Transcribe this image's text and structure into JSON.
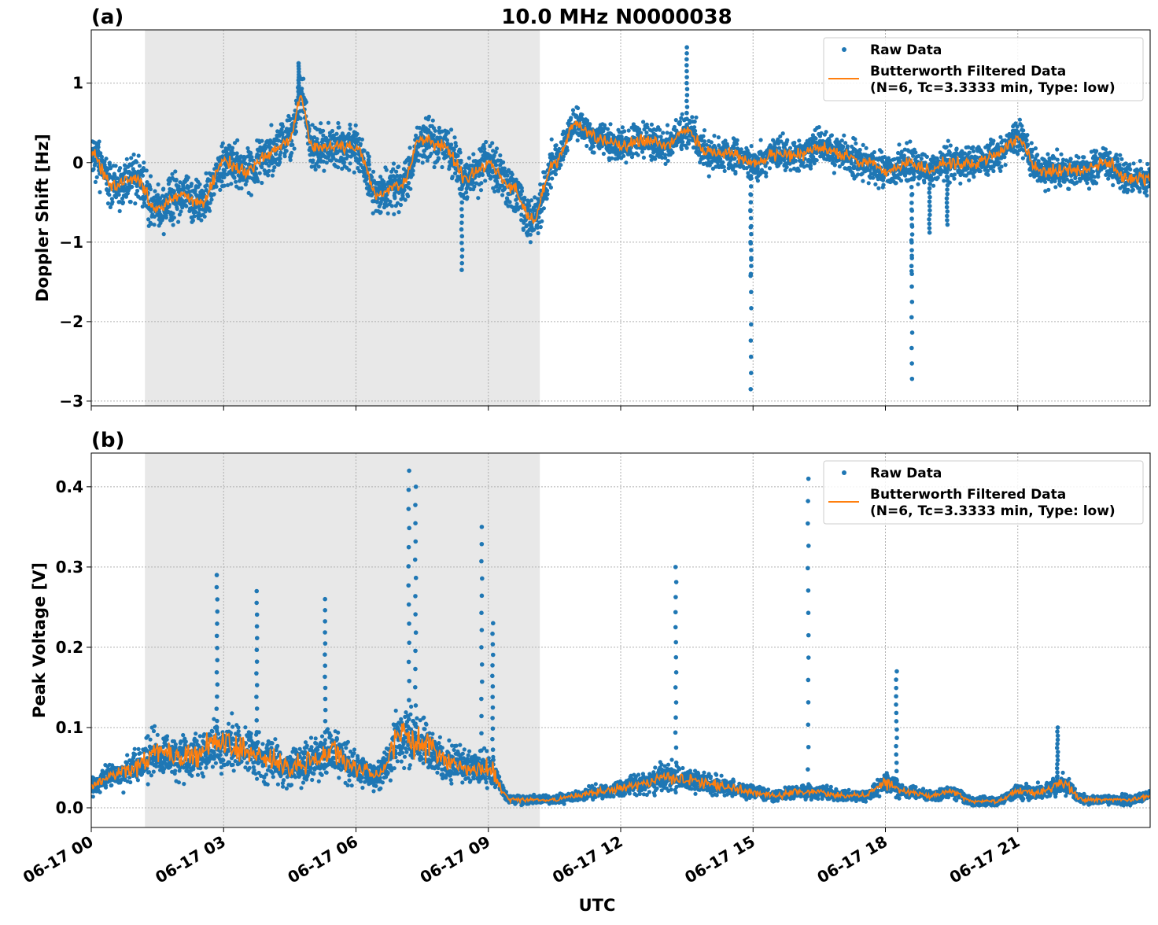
{
  "title": "10.0 MHz N0000038",
  "colors": {
    "raw": "#1f77b4",
    "filtered": "#ff7f0e",
    "shade": "#e8e8e8",
    "grid": "#b0b0b0"
  },
  "chart_data": [
    {
      "type": "scatter",
      "panel_label": "(a)",
      "ylabel": "Doppler Shift [Hz]",
      "xlabel": "",
      "xlim_hours": [
        0,
        24
      ],
      "ylim": [
        -3.06,
        1.67
      ],
      "yticks": [
        1,
        0,
        -1,
        -2,
        -3
      ],
      "ytick_labels": [
        "1",
        "0",
        "−1",
        "−2",
        "−3"
      ],
      "grid": true,
      "legend": "top-right",
      "legend_entries": [
        "Raw Data",
        "Butterworth Filtered Data",
        "(N=6, Tc=3.3333 min, Type: low)"
      ],
      "shaded_span_utc": [
        "01:13",
        "10:10"
      ],
      "filtered_hours": [
        0,
        0.5,
        1,
        1.5,
        2,
        2.5,
        3,
        3.5,
        4,
        4.5,
        4.75,
        5,
        5.5,
        6,
        6.5,
        7,
        7.5,
        8,
        8.5,
        9,
        9.5,
        10,
        10.5,
        11,
        11.5,
        12,
        12.5,
        13,
        13.5,
        14,
        14.5,
        15,
        15.5,
        16,
        16.5,
        17,
        17.5,
        18,
        18.5,
        19,
        19.5,
        20,
        20.5,
        21,
        21.5,
        22,
        22.5,
        23,
        23.5,
        24
      ],
      "filtered_values": [
        0.1,
        -0.3,
        -0.2,
        -0.6,
        -0.4,
        -0.5,
        0.0,
        -0.1,
        0.1,
        0.3,
        0.8,
        0.2,
        0.2,
        0.2,
        -0.4,
        -0.3,
        0.3,
        0.2,
        -0.2,
        0.0,
        -0.3,
        -0.7,
        0.0,
        0.5,
        0.3,
        0.2,
        0.3,
        0.2,
        0.4,
        0.1,
        0.1,
        0.0,
        0.1,
        0.1,
        0.2,
        0.1,
        0.0,
        -0.1,
        0.0,
        -0.1,
        0.0,
        0.0,
        0.1,
        0.3,
        -0.1,
        -0.1,
        -0.1,
        0.0,
        -0.2,
        -0.2
      ],
      "raw_spread": 0.4,
      "raw_outliers": [
        [
          4.7,
          1.25
        ],
        [
          8.4,
          -1.35
        ],
        [
          13.5,
          1.45
        ],
        [
          14.95,
          -2.85
        ],
        [
          14.95,
          -1.4
        ],
        [
          18.6,
          -2.72
        ],
        [
          18.6,
          -1.4
        ],
        [
          19.0,
          -0.88
        ],
        [
          19.4,
          -0.78
        ]
      ]
    },
    {
      "type": "scatter",
      "panel_label": "(b)",
      "ylabel": "Peak Voltage [V]",
      "xlabel": "UTC",
      "xlim_hours": [
        0,
        24
      ],
      "ylim": [
        -0.0245,
        0.442
      ],
      "yticks": [
        0.0,
        0.1,
        0.2,
        0.3,
        0.4
      ],
      "ytick_labels": [
        "0.0",
        "0.1",
        "0.2",
        "0.3",
        "0.4"
      ],
      "xtick_labels": [
        "06-17 00",
        "06-17 03",
        "06-17 06",
        "06-17 09",
        "06-17 12",
        "06-17 15",
        "06-17 18",
        "06-17 21"
      ],
      "xtick_hours": [
        0,
        3,
        6,
        9,
        12,
        15,
        18,
        21
      ],
      "grid": true,
      "legend": "top-right",
      "legend_entries": [
        "Raw Data",
        "Butterworth Filtered Data",
        "(N=6, Tc=3.3333 min, Type: low)"
      ],
      "shaded_span_utc": [
        "01:13",
        "10:10"
      ],
      "filtered_hours": [
        0,
        0.5,
        1,
        1.5,
        2,
        2.5,
        3,
        3.5,
        4,
        4.5,
        5,
        5.5,
        6,
        6.5,
        7,
        7.5,
        8,
        8.5,
        9,
        9.5,
        10,
        10.5,
        11,
        11.5,
        12,
        12.5,
        13,
        13.5,
        14,
        14.5,
        15,
        15.5,
        16,
        16.5,
        17,
        17.5,
        18,
        18.5,
        19,
        19.5,
        20,
        20.5,
        21,
        21.5,
        22,
        22.5,
        23,
        23.5,
        24
      ],
      "filtered_values": [
        0.03,
        0.04,
        0.05,
        0.07,
        0.06,
        0.07,
        0.08,
        0.07,
        0.06,
        0.05,
        0.06,
        0.07,
        0.05,
        0.04,
        0.09,
        0.08,
        0.06,
        0.05,
        0.05,
        0.01,
        0.01,
        0.01,
        0.015,
        0.02,
        0.025,
        0.03,
        0.04,
        0.035,
        0.03,
        0.025,
        0.02,
        0.015,
        0.02,
        0.02,
        0.015,
        0.015,
        0.03,
        0.02,
        0.015,
        0.02,
        0.008,
        0.008,
        0.02,
        0.02,
        0.03,
        0.01,
        0.01,
        0.01,
        0.015
      ],
      "raw_peaks": [
        [
          2.85,
          0.29
        ],
        [
          3.75,
          0.27
        ],
        [
          5.3,
          0.26
        ],
        [
          7.2,
          0.42
        ],
        [
          7.35,
          0.4
        ],
        [
          8.85,
          0.35
        ],
        [
          9.1,
          0.23
        ],
        [
          13.25,
          0.3
        ],
        [
          16.25,
          0.41
        ],
        [
          18.25,
          0.17
        ],
        [
          21.9,
          0.1
        ]
      ]
    }
  ]
}
